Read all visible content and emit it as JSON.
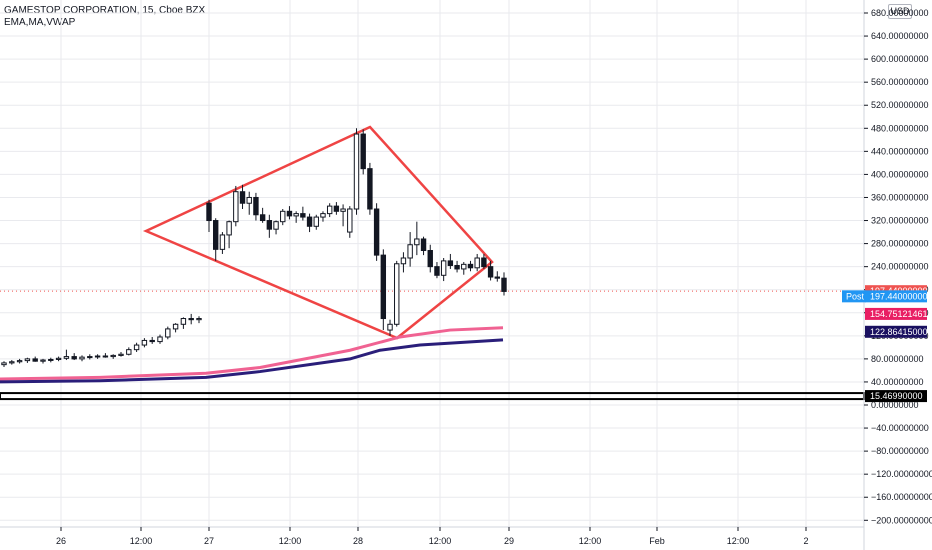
{
  "header": {
    "title": "GAMESTOP CORPORATION, 15, Cboe BZX",
    "indicators": "EMA,MA,VWAP",
    "currency": "USD"
  },
  "colors": {
    "up": "#131722",
    "down": "#131722",
    "pattern": "#ef4444",
    "ema": "#f06292",
    "ma": "#2a1e7a",
    "vwap_label": "#ef5350",
    "post_label": "#2196f3",
    "grid": "#e9eaee",
    "hline": "#000000"
  },
  "chart_data": {
    "type": "candlestick",
    "ylim": [
      -220,
      700
    ],
    "y_ticks": [
      -200,
      -160,
      -120,
      -80,
      -40,
      0,
      40,
      80,
      120,
      160,
      200,
      240,
      280,
      320,
      360,
      400,
      440,
      480,
      520,
      560,
      600,
      640,
      680
    ],
    "y_tick_format": "decimal8",
    "x_ticks": [
      "26",
      "12:00",
      "27",
      "12:00",
      "28",
      "12:00",
      "29",
      "12:00",
      "Feb",
      "12:00",
      "2"
    ],
    "badges": [
      {
        "label": "197.44000000",
        "value": 197.44,
        "color": "#ef5350",
        "text_color": "#ffffff"
      },
      {
        "label": "197.44000000",
        "value": 188.5,
        "prefix": "Post",
        "color": "#2196f3",
        "text_color": "#ffffff"
      },
      {
        "label": "154.75121461",
        "value": 158,
        "color": "#e91e63",
        "text_color": "#ffffff"
      },
      {
        "label": "122.86415000",
        "value": 127,
        "color": "#1a1060",
        "text_color": "#ffffff"
      },
      {
        "label": "15.46990000",
        "value": 15.47,
        "color": "#000000",
        "text_color": "#ffffff"
      }
    ],
    "horizontal_line": 15.47,
    "last_price_line": 197.44,
    "candles": [
      {
        "o": 70,
        "h": 76,
        "l": 66,
        "c": 73
      },
      {
        "o": 73,
        "h": 78,
        "l": 70,
        "c": 75
      },
      {
        "o": 75,
        "h": 80,
        "l": 72,
        "c": 77
      },
      {
        "o": 77,
        "h": 82,
        "l": 73,
        "c": 80
      },
      {
        "o": 80,
        "h": 84,
        "l": 75,
        "c": 76
      },
      {
        "o": 76,
        "h": 80,
        "l": 72,
        "c": 78
      },
      {
        "o": 78,
        "h": 82,
        "l": 74,
        "c": 79
      },
      {
        "o": 79,
        "h": 84,
        "l": 76,
        "c": 81
      },
      {
        "o": 81,
        "h": 96,
        "l": 78,
        "c": 84
      },
      {
        "o": 84,
        "h": 90,
        "l": 78,
        "c": 80
      },
      {
        "o": 80,
        "h": 86,
        "l": 76,
        "c": 83
      },
      {
        "o": 83,
        "h": 88,
        "l": 79,
        "c": 84
      },
      {
        "o": 84,
        "h": 88,
        "l": 80,
        "c": 85
      },
      {
        "o": 85,
        "h": 90,
        "l": 82,
        "c": 84
      },
      {
        "o": 84,
        "h": 88,
        "l": 80,
        "c": 86
      },
      {
        "o": 86,
        "h": 92,
        "l": 84,
        "c": 88
      },
      {
        "o": 88,
        "h": 100,
        "l": 86,
        "c": 96
      },
      {
        "o": 96,
        "h": 108,
        "l": 92,
        "c": 104
      },
      {
        "o": 104,
        "h": 116,
        "l": 100,
        "c": 112
      },
      {
        "o": 112,
        "h": 118,
        "l": 106,
        "c": 110
      },
      {
        "o": 110,
        "h": 122,
        "l": 106,
        "c": 118
      },
      {
        "o": 118,
        "h": 136,
        "l": 114,
        "c": 132
      },
      {
        "o": 132,
        "h": 142,
        "l": 126,
        "c": 140
      },
      {
        "o": 140,
        "h": 152,
        "l": 132,
        "c": 150
      },
      {
        "o": 150,
        "h": 158,
        "l": 140,
        "c": 148
      },
      {
        "o": 148,
        "h": 154,
        "l": 142,
        "c": 150
      },
      {
        "o": 350,
        "h": 356,
        "l": 300,
        "c": 320
      },
      {
        "o": 320,
        "h": 324,
        "l": 250,
        "c": 270
      },
      {
        "o": 270,
        "h": 300,
        "l": 262,
        "c": 295
      },
      {
        "o": 295,
        "h": 320,
        "l": 272,
        "c": 318
      },
      {
        "o": 318,
        "h": 380,
        "l": 310,
        "c": 370
      },
      {
        "o": 370,
        "h": 382,
        "l": 340,
        "c": 350
      },
      {
        "o": 350,
        "h": 370,
        "l": 330,
        "c": 360
      },
      {
        "o": 360,
        "h": 368,
        "l": 320,
        "c": 330
      },
      {
        "o": 330,
        "h": 342,
        "l": 316,
        "c": 320
      },
      {
        "o": 320,
        "h": 330,
        "l": 290,
        "c": 305
      },
      {
        "o": 305,
        "h": 320,
        "l": 296,
        "c": 318
      },
      {
        "o": 318,
        "h": 340,
        "l": 312,
        "c": 336
      },
      {
        "o": 336,
        "h": 345,
        "l": 322,
        "c": 328
      },
      {
        "o": 328,
        "h": 336,
        "l": 316,
        "c": 332
      },
      {
        "o": 332,
        "h": 344,
        "l": 320,
        "c": 326
      },
      {
        "o": 326,
        "h": 332,
        "l": 300,
        "c": 310
      },
      {
        "o": 310,
        "h": 330,
        "l": 304,
        "c": 326
      },
      {
        "o": 326,
        "h": 336,
        "l": 318,
        "c": 332
      },
      {
        "o": 332,
        "h": 350,
        "l": 326,
        "c": 345
      },
      {
        "o": 345,
        "h": 352,
        "l": 330,
        "c": 336
      },
      {
        "o": 336,
        "h": 348,
        "l": 310,
        "c": 340
      },
      {
        "o": 300,
        "h": 345,
        "l": 290,
        "c": 340
      },
      {
        "o": 340,
        "h": 480,
        "l": 330,
        "c": 470
      },
      {
        "o": 470,
        "h": 478,
        "l": 400,
        "c": 410
      },
      {
        "o": 410,
        "h": 420,
        "l": 330,
        "c": 340
      },
      {
        "o": 340,
        "h": 350,
        "l": 250,
        "c": 260
      },
      {
        "o": 260,
        "h": 270,
        "l": 130,
        "c": 150
      },
      {
        "o": 130,
        "h": 148,
        "l": 120,
        "c": 140
      },
      {
        "o": 140,
        "h": 250,
        "l": 136,
        "c": 245
      },
      {
        "o": 245,
        "h": 265,
        "l": 230,
        "c": 255
      },
      {
        "o": 255,
        "h": 300,
        "l": 240,
        "c": 278
      },
      {
        "o": 278,
        "h": 318,
        "l": 260,
        "c": 288
      },
      {
        "o": 288,
        "h": 292,
        "l": 260,
        "c": 268
      },
      {
        "o": 268,
        "h": 278,
        "l": 230,
        "c": 240
      },
      {
        "o": 240,
        "h": 248,
        "l": 220,
        "c": 225
      },
      {
        "o": 225,
        "h": 255,
        "l": 215,
        "c": 250
      },
      {
        "o": 250,
        "h": 262,
        "l": 236,
        "c": 242
      },
      {
        "o": 242,
        "h": 250,
        "l": 230,
        "c": 236
      },
      {
        "o": 236,
        "h": 248,
        "l": 226,
        "c": 244
      },
      {
        "o": 244,
        "h": 250,
        "l": 232,
        "c": 238
      },
      {
        "o": 238,
        "h": 262,
        "l": 232,
        "c": 255
      },
      {
        "o": 255,
        "h": 262,
        "l": 236,
        "c": 240
      },
      {
        "o": 240,
        "h": 250,
        "l": 216,
        "c": 222
      },
      {
        "o": 222,
        "h": 232,
        "l": 214,
        "c": 220
      },
      {
        "o": 220,
        "h": 230,
        "l": 190,
        "c": 197
      }
    ],
    "ema": [
      [
        -1,
        45
      ],
      [
        100,
        48
      ],
      [
        206,
        55
      ],
      [
        260,
        65
      ],
      [
        350,
        95
      ],
      [
        400,
        118
      ],
      [
        450,
        130
      ],
      [
        503,
        134
      ]
    ],
    "ma": [
      [
        -1,
        40
      ],
      [
        100,
        42
      ],
      [
        206,
        48
      ],
      [
        260,
        58
      ],
      [
        350,
        80
      ],
      [
        380,
        95
      ],
      [
        420,
        104
      ],
      [
        503,
        113
      ]
    ],
    "pattern_lines": [
      [
        {
          "x": 146,
          "y": 303
        },
        {
          "x": 370,
          "y": 483
        }
      ],
      [
        {
          "x": 370,
          "y": 483
        },
        {
          "x": 492,
          "y": 240
        }
      ],
      [
        {
          "x": 492,
          "y": 240
        },
        {
          "x": 397,
          "y": 110
        }
      ],
      [
        {
          "x": 397,
          "y": 110
        },
        {
          "x": 146,
          "y": 303
        }
      ],
      [
        {
          "x": 220,
          "y": 250
        },
        {
          "x": 146,
          "y": 303
        }
      ],
      [
        {
          "x": 397,
          "y": 110
        },
        {
          "x": 492,
          "y": 240
        }
      ]
    ]
  }
}
